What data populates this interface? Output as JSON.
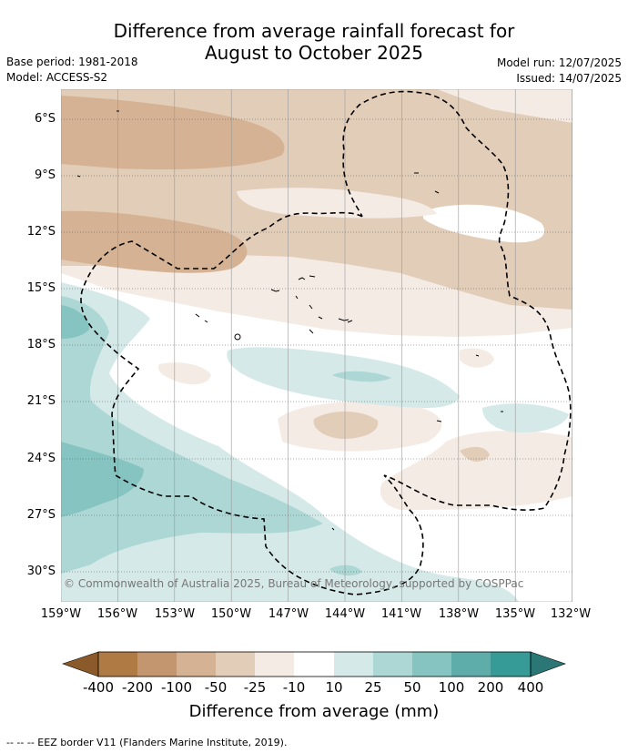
{
  "title_line1": "Difference from average rainfall forecast for",
  "title_line2": "August to October 2025",
  "meta_left": [
    "Base period: 1981-2018",
    "Model: ACCESS-S2"
  ],
  "meta_right": [
    "Model run: 12/07/2025",
    "Issued: 14/07/2025"
  ],
  "lat_labels": [
    "6°S",
    "9°S",
    "12°S",
    "15°S",
    "18°S",
    "21°S",
    "24°S",
    "27°S",
    "30°S"
  ],
  "lon_labels": [
    "159°W",
    "156°W",
    "153°W",
    "150°W",
    "147°W",
    "144°W",
    "141°W",
    "138°W",
    "135°W",
    "132°W"
  ],
  "colorbar": {
    "labels": [
      "-400",
      "-200",
      "-100",
      "-50",
      "-25",
      "-10",
      "10",
      "25",
      "50",
      "100",
      "200",
      "400"
    ],
    "colors": [
      "#8a5a2b",
      "#b07a45",
      "#c49670",
      "#d4b293",
      "#e2cdb9",
      "#f4ebe4",
      "#ffffff",
      "#d5e9e8",
      "#acd7d5",
      "#86c4c1",
      "#5fadab",
      "#369a97",
      "#2a7775"
    ],
    "title": "Difference from average (mm)"
  },
  "copyright": "© Commonwealth of Australia 2025, Bureau of Meteorology, supported by COSPPac",
  "footer": "-- -- -- EEZ border V11 (Flanders Marine Institute, 2019)."
}
